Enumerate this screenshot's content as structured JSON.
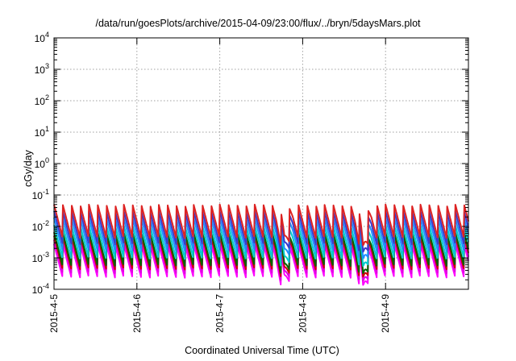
{
  "chart_data": {
    "type": "line",
    "title": "/data/run/goesPlots/archive/2015-04-09/23:00/flux/../bryn/5daysMars.plot",
    "xlabel": "Coordinated Universal Time (UTC)",
    "ylabel": "cGy/day",
    "yscale": "log",
    "ylim": [
      0.0001,
      10000
    ],
    "xlim": [
      "2015-04-05",
      "2015-04-10"
    ],
    "grid": true,
    "y_ticks": [
      {
        "mantissa": "10",
        "exp": "-4"
      },
      {
        "mantissa": "10",
        "exp": "-3"
      },
      {
        "mantissa": "10",
        "exp": "-2"
      },
      {
        "mantissa": "10",
        "exp": "-1"
      },
      {
        "mantissa": "10",
        "exp": "0"
      },
      {
        "mantissa": "10",
        "exp": "1"
      },
      {
        "mantissa": "10",
        "exp": "2"
      },
      {
        "mantissa": "10",
        "exp": "3"
      },
      {
        "mantissa": "10",
        "exp": "4"
      }
    ],
    "x_ticks": [
      "2015-4-5",
      "2015-4-6",
      "2015-4-7",
      "2015-4-8",
      "2015-4-9"
    ],
    "pattern": {
      "cycles_per_day": 9.5,
      "peak": 0.05,
      "trough": 0.0042,
      "dips": [
        {
          "center_day": 2.78,
          "depth_factor": 0.28
        },
        {
          "center_day": 3.73,
          "depth_factor": 0.13
        }
      ]
    },
    "series": [
      {
        "color": "#ff00ff",
        "scale": 0.055
      },
      {
        "color": "#e000e0",
        "scale": 0.075
      },
      {
        "color": "#cc0000",
        "scale": 0.1
      },
      {
        "color": "#006400",
        "scale": 0.13
      },
      {
        "color": "#00cccc",
        "scale": 0.22
      },
      {
        "color": "#1e90ff",
        "scale": 0.38
      },
      {
        "color": "#3a3acd",
        "scale": 0.62
      },
      {
        "color": "#dd2222",
        "scale": 1.0
      }
    ]
  }
}
